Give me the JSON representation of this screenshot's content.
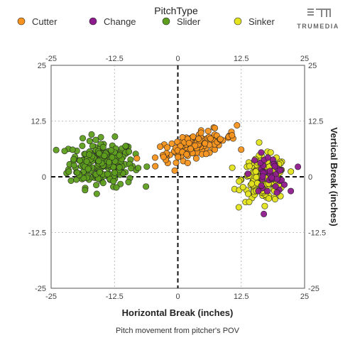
{
  "chart_data": {
    "type": "scatter",
    "title": "",
    "legend_title": "PitchType",
    "legend_position": "top",
    "xlabel": "Horizontal Break (inches)",
    "ylabel": "Vertical Break (inches)",
    "caption": "Pitch movement from pitcher's POV",
    "brand": "TRUMEDIA",
    "xlim": [
      -25,
      25
    ],
    "ylim": [
      -25,
      25
    ],
    "xticks": [
      -25,
      -12.5,
      0,
      12.5,
      25
    ],
    "yticks": [
      -25,
      -12.5,
      0,
      12.5,
      25
    ],
    "grid": true,
    "reference_lines": {
      "x": 0,
      "y": 0,
      "style": "dashed"
    },
    "series": [
      {
        "name": "Cutter",
        "color": "#F7931E",
        "center": [
          3.5,
          7.0
        ],
        "spread": [
          4.0,
          2.2
        ],
        "n": 120
      },
      {
        "name": "Change",
        "color": "#8E1B8E",
        "center": [
          18.0,
          0.5
        ],
        "spread": [
          1.8,
          2.2
        ],
        "n": 40
      },
      {
        "name": "Slider",
        "color": "#5E9E1E",
        "center": [
          -15.0,
          3.0
        ],
        "spread": [
          3.2,
          2.6
        ],
        "n": 230
      },
      {
        "name": "Sinker",
        "color": "#E3E31E",
        "center": [
          17.0,
          -0.5
        ],
        "spread": [
          2.2,
          2.5
        ],
        "n": 170
      }
    ]
  }
}
